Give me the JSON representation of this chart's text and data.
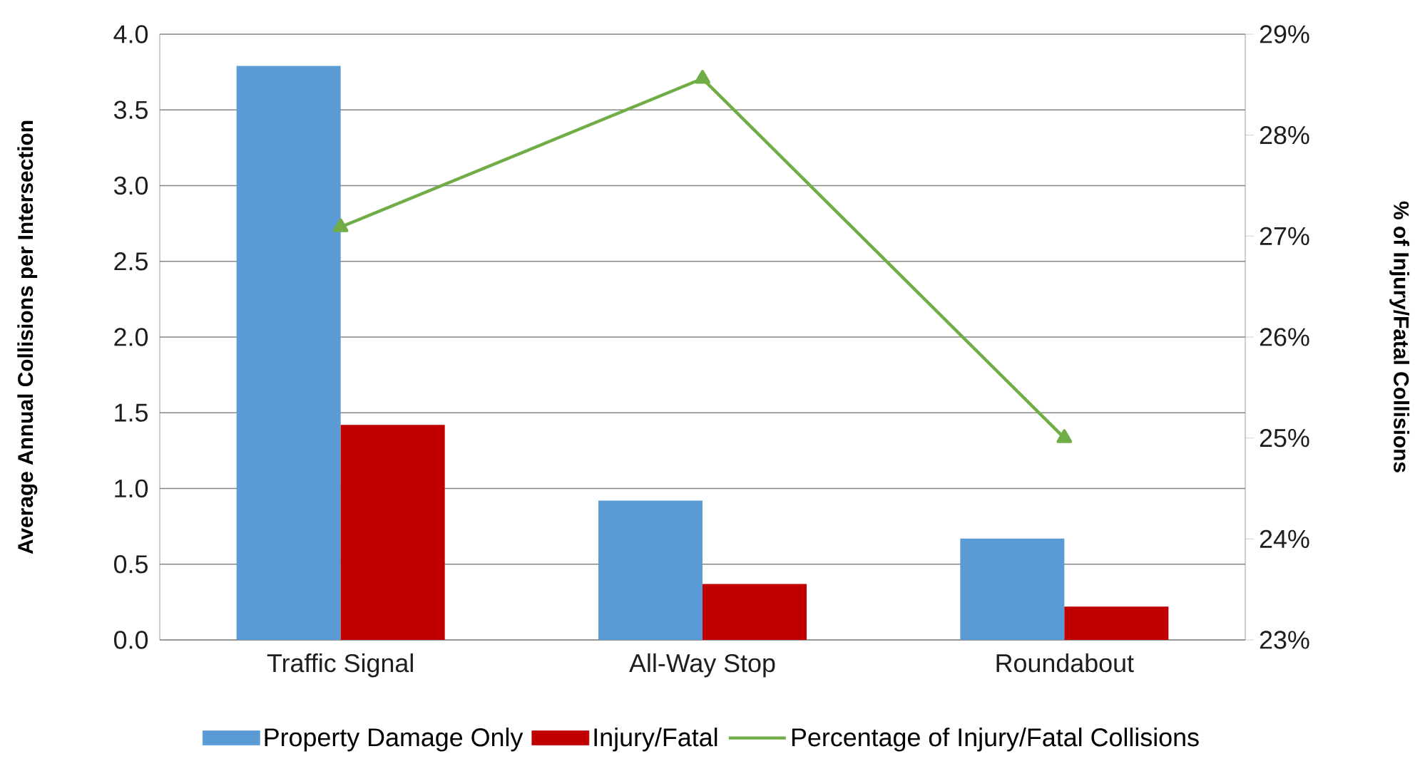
{
  "chart_data": {
    "type": "bar",
    "categories": [
      "Traffic Signal",
      "All-Way Stop",
      "Roundabout"
    ],
    "ylabel": "Average Annual Collisions per Intersection",
    "y2label": "% of Injury/Fatal Collisions",
    "ylim": [
      0,
      4
    ],
    "yticks": [
      {
        "value": 0,
        "label": "0.0"
      },
      {
        "value": 0.5,
        "label": "0.5"
      },
      {
        "value": 1,
        "label": "1.0"
      },
      {
        "value": 1.5,
        "label": "1.5"
      },
      {
        "value": 2,
        "label": "2.0"
      },
      {
        "value": 2.5,
        "label": "2.5"
      },
      {
        "value": 3,
        "label": "3.0"
      },
      {
        "value": 3.5,
        "label": "3.5"
      },
      {
        "value": 4,
        "label": "4.0"
      }
    ],
    "y2lim": [
      23,
      29
    ],
    "y2ticks": [
      {
        "value": 23,
        "label": "23%"
      },
      {
        "value": 24,
        "label": "24%"
      },
      {
        "value": 25,
        "label": "25%"
      },
      {
        "value": 26,
        "label": "26%"
      },
      {
        "value": 27,
        "label": "27%"
      },
      {
        "value": 28,
        "label": "28%"
      },
      {
        "value": 29,
        "label": "29%"
      }
    ],
    "grid": "y",
    "legend": "bottom",
    "marker": "triangle",
    "series": [
      {
        "name": "Property Damage Only",
        "color": "#5b9bd5",
        "values": [
          3.79,
          0.92,
          0.67
        ]
      },
      {
        "name": "Injury/Fatal",
        "color": "#c00000",
        "values": [
          1.42,
          0.37,
          0.22
        ]
      },
      {
        "name": "Percentage of Injury/Fatal Collisions",
        "type": "line",
        "axis": "y2",
        "color": "#70ad47",
        "values": [
          27.09,
          28.56,
          25.0
        ]
      }
    ]
  }
}
